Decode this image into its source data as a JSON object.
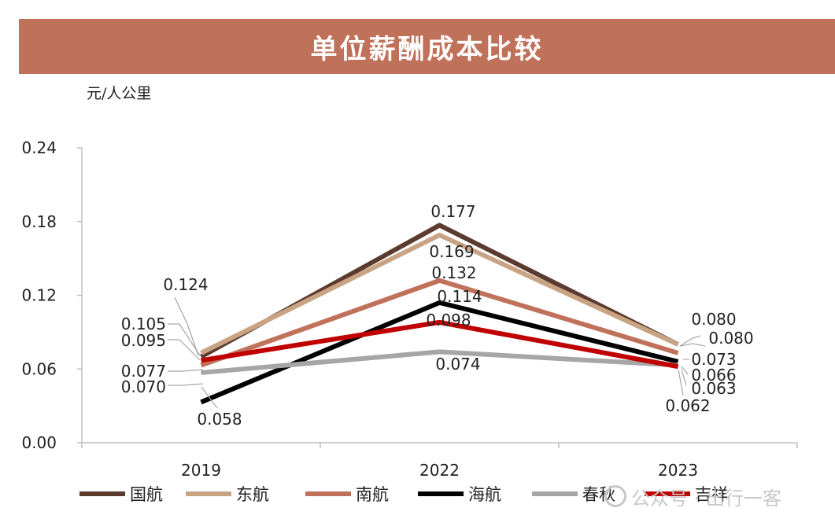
{
  "header": {
    "title": "单位薪酬成本比较"
  },
  "unit": "元/人公里",
  "watermark": {
    "text": "公众号 · 出行一客"
  },
  "chart_data": {
    "type": "line",
    "title": "单位薪酬成本比较",
    "ylabel": "元/人公里",
    "xlabel": "",
    "categories": [
      "2019",
      "2022",
      "2023"
    ],
    "ylim": [
      0,
      0.24
    ],
    "yticks": [
      "0.00",
      "0.06",
      "0.12",
      "0.18",
      "0.24"
    ],
    "grid": false,
    "legend_position": "bottom",
    "series": [
      {
        "name": "国航",
        "color": "#5a3b2e",
        "values": [
          0.07,
          0.177,
          0.08
        ]
      },
      {
        "name": "东航",
        "color": "#c8a484",
        "values": [
          0.073,
          0.169,
          0.08
        ]
      },
      {
        "name": "南航",
        "color": "#c0715a",
        "values": [
          0.063,
          0.132,
          0.073
        ]
      },
      {
        "name": "海航",
        "color": "#000000",
        "values": [
          0.033,
          0.114,
          0.066
        ]
      },
      {
        "name": "春秋",
        "color": "#a6a6a6",
        "values": [
          0.057,
          0.074,
          0.063
        ]
      },
      {
        "name": "吉祥",
        "color": "#c00000",
        "values": [
          0.067,
          0.098,
          0.062
        ]
      }
    ],
    "data_labels": [
      {
        "text": "0.124"
      },
      {
        "text": "0.105"
      },
      {
        "text": "0.095"
      },
      {
        "text": "0.077"
      },
      {
        "text": "0.070"
      },
      {
        "text": "0.058"
      },
      {
        "text": "0.177"
      },
      {
        "text": "0.169"
      },
      {
        "text": "0.132"
      },
      {
        "text": "0.114"
      },
      {
        "text": "0.098"
      },
      {
        "text": "0.074"
      },
      {
        "text": "0.080"
      },
      {
        "text": "0.080"
      },
      {
        "text": "0.073"
      },
      {
        "text": "0.066"
      },
      {
        "text": "0.063"
      },
      {
        "text": "0.062"
      }
    ]
  }
}
